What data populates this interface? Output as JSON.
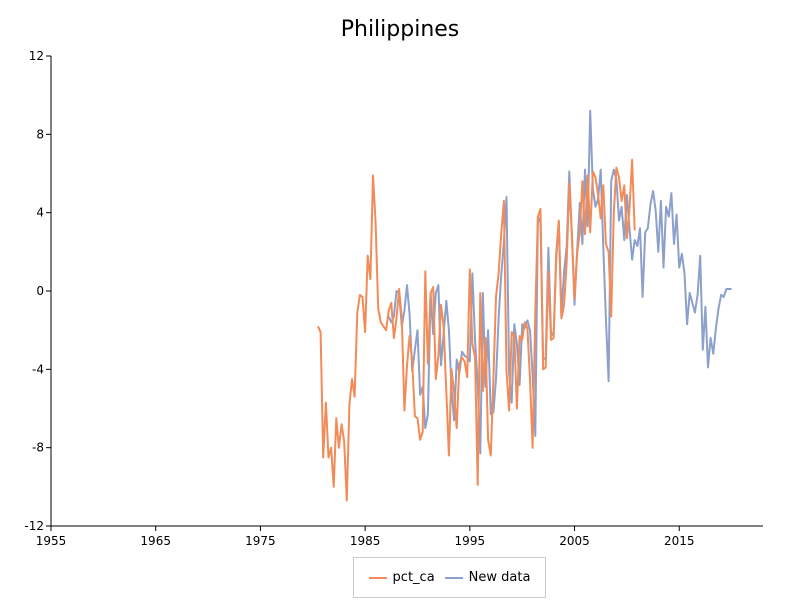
{
  "chart_data": {
    "type": "line",
    "title": "Philippines",
    "xlabel": "",
    "ylabel": "",
    "xlim": [
      1955,
      2023
    ],
    "ylim": [
      -12,
      12
    ],
    "x_ticks": [
      1955,
      1965,
      1975,
      1985,
      1995,
      2005,
      2015
    ],
    "y_ticks": [
      -12,
      -8,
      -4,
      0,
      4,
      8,
      12
    ],
    "grid": false,
    "legend_position": "bottom",
    "series": [
      {
        "name": "pct_ca",
        "color": "#f28b57",
        "x": [
          1980.5,
          1980.75,
          1981.0,
          1981.25,
          1981.5,
          1981.75,
          1982.0,
          1982.25,
          1982.5,
          1982.75,
          1983.0,
          1983.25,
          1983.5,
          1983.75,
          1984.0,
          1984.25,
          1984.5,
          1984.75,
          1985.0,
          1985.25,
          1985.5,
          1985.75,
          1986.0,
          1986.25,
          1986.5,
          1986.75,
          1987.0,
          1987.25,
          1987.5,
          1987.75,
          1988.0,
          1988.25,
          1988.5,
          1988.75,
          1989.0,
          1989.25,
          1989.5,
          1989.75,
          1990.0,
          1990.25,
          1990.5,
          1990.75,
          1991.0,
          1991.25,
          1991.5,
          1991.75,
          1992.0,
          1992.25,
          1992.5,
          1992.75,
          1993.0,
          1993.25,
          1993.5,
          1993.75,
          1994.0,
          1994.25,
          1994.5,
          1994.75,
          1995.0,
          1995.25,
          1995.5,
          1995.75,
          1996.0,
          1996.25,
          1996.5,
          1996.75,
          1997.0,
          1997.25,
          1997.5,
          1997.75,
          1998.0,
          1998.25,
          1998.5,
          1998.75,
          1999.0,
          1999.25,
          1999.5,
          1999.75,
          2000.0,
          2000.25,
          2000.5,
          2000.75,
          2001.0,
          2001.25,
          2001.5,
          2001.75,
          2002.0,
          2002.25,
          2002.5,
          2002.75,
          2003.0,
          2003.25,
          2003.5,
          2003.75,
          2004.0,
          2004.25,
          2004.5,
          2004.75,
          2005.0,
          2005.25,
          2005.5,
          2005.75,
          2006.0,
          2006.25,
          2006.5,
          2006.75,
          2007.0,
          2007.25,
          2007.5,
          2007.75,
          2008.0,
          2008.25,
          2008.5,
          2008.75,
          2009.0,
          2009.25,
          2009.5,
          2009.75,
          2010.0,
          2010.25
        ],
        "y": [
          -1.8,
          -2.1,
          -8.5,
          -5.7,
          -8.5,
          -8.0,
          -10.0,
          -6.5,
          -8.0,
          -6.8,
          -7.7,
          -10.7,
          -5.8,
          -4.5,
          -5.4,
          -1.1,
          -0.2,
          -0.3,
          -2.1,
          1.8,
          0.6,
          5.9,
          3.5,
          -0.9,
          -1.6,
          -1.8,
          -2.0,
          -1.0,
          -0.6,
          -2.4,
          -1.4,
          0.1,
          -1.4,
          -6.1,
          -3.8,
          -2.3,
          -3.6,
          -6.4,
          -6.5,
          -7.6,
          -7.2,
          1.0,
          -3.7,
          -0.1,
          0.2,
          -4.5,
          -3.3,
          -0.7,
          -1.8,
          -5.1,
          -8.4,
          -4.0,
          -5.2,
          -7.0,
          -3.7,
          -3.4,
          -3.6,
          -4.4,
          1.1,
          -2.7,
          -3.4,
          -9.9,
          -0.1,
          -5.1,
          -2.4,
          -7.6,
          -8.4,
          -4.5,
          -0.3,
          0.9,
          2.9,
          4.6,
          -4.1,
          -6.1,
          -2.1,
          -2.3,
          -6.0,
          -2.3,
          -2.5,
          -1.6,
          -1.9,
          -4.5,
          -8.0,
          -1.1,
          3.8,
          4.2,
          -4.0,
          -3.9,
          1.0,
          -2.5,
          -2.4,
          1.9,
          3.6,
          -1.4,
          -0.7,
          1.5,
          5.5,
          2.9,
          -0.4,
          1.9,
          3.0,
          5.6,
          2.9,
          5.9,
          3.0,
          6.1,
          5.8,
          4.9,
          3.7,
          5.4,
          2.4,
          2.0,
          -1.3,
          4.0,
          6.3,
          5.8,
          4.6,
          5.4,
          2.7,
          4.2
        ],
        "x2": [
          2010.25,
          2010.5,
          2010.75
        ],
        "y2": [
          4.2,
          6.7,
          3.1
        ]
      },
      {
        "name": "New data",
        "color": "#8da0cb",
        "x": [
          1987.25,
          1987.5,
          1987.75,
          1988.0,
          1988.25,
          1988.5,
          1988.75,
          1989.0,
          1989.25,
          1989.5,
          1989.75,
          1990.0,
          1990.25,
          1990.5,
          1990.75,
          1991.0,
          1991.25,
          1991.5,
          1991.75,
          1992.0,
          1992.25,
          1992.5,
          1992.75,
          1993.0,
          1993.25,
          1993.5,
          1993.75,
          1994.0,
          1994.25,
          1994.5,
          1994.75,
          1995.0,
          1995.25,
          1995.5,
          1995.75,
          1996.0,
          1996.25,
          1996.5,
          1996.75,
          1997.0,
          1997.25,
          1997.5,
          1997.75,
          1998.0,
          1998.25,
          1998.5,
          1998.75,
          1999.0,
          1999.25,
          1999.5,
          1999.75,
          2000.0,
          2000.25,
          2000.5,
          2000.75,
          2001.0,
          2001.25,
          2001.5,
          2001.75,
          2002.0,
          2002.25,
          2002.5,
          2002.75,
          2003.0,
          2003.25,
          2003.5,
          2003.75,
          2004.0,
          2004.25,
          2004.5,
          2004.75,
          2005.0,
          2005.25,
          2005.5,
          2005.75,
          2006.0,
          2006.25,
          2006.5,
          2006.75,
          2007.0,
          2007.25,
          2007.5,
          2007.75,
          2008.0,
          2008.25,
          2008.5,
          2008.75,
          2009.0,
          2009.25,
          2009.5,
          2009.75,
          2010.0,
          2010.25,
          2010.5,
          2010.75,
          2011.0,
          2011.25,
          2011.5,
          2011.75,
          2012.0,
          2012.25,
          2012.5,
          2012.75,
          2013.0,
          2013.25,
          2013.5,
          2013.75,
          2014.0,
          2014.25,
          2014.5,
          2014.75,
          2015.0,
          2015.25,
          2015.5,
          2015.75,
          2016.0,
          2016.25,
          2016.5,
          2016.75,
          2017.0,
          2017.25,
          2017.5,
          2017.75,
          2018.0,
          2018.25,
          2018.5,
          2018.75,
          2019.0,
          2019.25,
          2019.5,
          2019.75,
          2020.0
        ],
        "y": [
          -1.3,
          -1.6,
          -1.3,
          0.0,
          -0.1,
          -1.8,
          -1.0,
          0.3,
          -1.2,
          -4.1,
          -3.0,
          -2.0,
          -5.3,
          -4.9,
          -7.0,
          -6.3,
          -0.1,
          -2.2,
          -0.1,
          0.3,
          -3.8,
          -2.2,
          -0.5,
          -2.0,
          -5.0,
          -6.6,
          -3.5,
          -4.2,
          -3.1,
          -3.3,
          -3.4,
          -3.6,
          0.9,
          -2.6,
          -4.7,
          -8.3,
          -0.1,
          -4.9,
          -2.0,
          -6.3,
          -6.2,
          -4.5,
          -1.4,
          0.8,
          2.5,
          4.8,
          -4.2,
          -5.7,
          -1.7,
          -2.7,
          -4.8,
          -1.7,
          -1.9,
          -1.5,
          -2.0,
          -4.3,
          -7.4,
          3.8,
          3.5,
          -3.5,
          -3.4,
          2.2,
          -2.1,
          -2.3,
          1.6,
          3.5,
          -1.2,
          1.0,
          2.3,
          6.1,
          2.8,
          -0.7,
          2.0,
          4.5,
          2.4,
          6.2,
          3.3,
          9.2,
          5.2,
          4.3,
          4.7,
          6.2,
          2.2,
          -1.4,
          -4.6,
          5.6,
          6.2,
          5.7,
          3.6,
          4.3,
          2.6,
          4.9,
          3.2,
          1.6,
          2.6,
          2.3,
          3.2,
          -0.3,
          3.0,
          3.2,
          4.4,
          5.1,
          4.1,
          2.0,
          4.6,
          1.2,
          4.3,
          3.8,
          5.0,
          2.4,
          3.9,
          1.2,
          1.9,
          0.9,
          -1.7,
          -0.1,
          -0.6,
          -1.1,
          -0.2,
          1.8,
          -3.0,
          -0.8,
          -3.9,
          -2.4,
          -3.2,
          -1.9,
          -0.9,
          -0.2,
          -0.3,
          0.1,
          0.1,
          0.1
        ]
      }
    ]
  }
}
